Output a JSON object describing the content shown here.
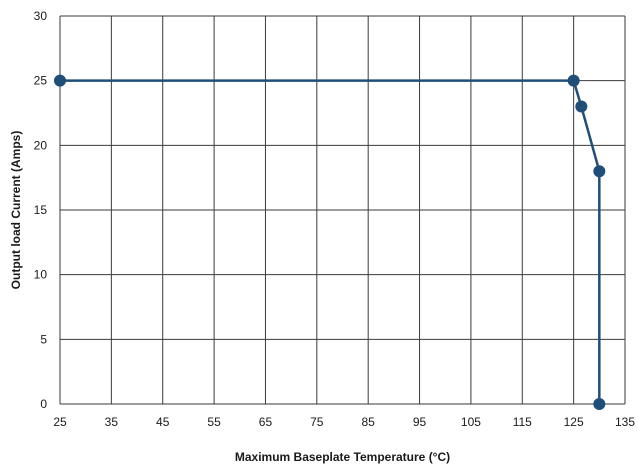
{
  "chart_data": {
    "type": "line",
    "title": "",
    "xlabel": "Maximum Baseplate Temperature (°C)",
    "ylabel": "Output load Current (Amps)",
    "xlim": [
      25,
      135
    ],
    "ylim": [
      0,
      30
    ],
    "x_ticks": [
      25,
      35,
      45,
      55,
      65,
      75,
      85,
      95,
      105,
      115,
      125,
      135
    ],
    "y_ticks": [
      0,
      5,
      10,
      15,
      20,
      25,
      30
    ],
    "grid": true,
    "legend": "none",
    "series": [
      {
        "color": "#1f4e79",
        "points": [
          {
            "x": 25,
            "y": 25
          },
          {
            "x": 125,
            "y": 25
          },
          {
            "x": 126.5,
            "y": 23
          },
          {
            "x": 130,
            "y": 18
          },
          {
            "x": 130,
            "y": 0
          }
        ]
      }
    ]
  }
}
